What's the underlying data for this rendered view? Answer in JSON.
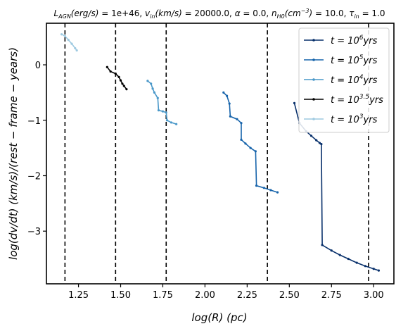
{
  "chart_data": {
    "type": "line",
    "title": "$L_{AGN}(erg/s) = 1e+46, v_{in}(km/s) = 20000.0, \\alpha = 0.0, n_{H0}(cm^{-3}) = 10.0, \\tau_{in} = 1.0$",
    "title_parts": {
      "L": "L",
      "L_sub": "AGN",
      "L_unit": "(erg/s)",
      "L_val": " = 1e+46, ",
      "v": "v",
      "v_sub": "in",
      "v_unit": "(km/s)",
      "v_val": " = 20000.0, ",
      "alpha": "α",
      "alpha_val": " = 0.0, ",
      "n": "n",
      "n_sub": "H0",
      "n_unit": "(cm",
      "n_sup": "−3",
      "n_close": ")",
      "n_val": " = 10.0, ",
      "tau": "τ",
      "tau_sub": "in",
      "tau_val": " = 1.0"
    },
    "xlabel": "log(R)   (pc)",
    "ylabel": "log(dv/dt)   (km/s)/(rest − frame − years)",
    "xlim": [
      1.06,
      3.12
    ],
    "ylim": [
      -3.95,
      0.75
    ],
    "xticks": [
      1.25,
      1.5,
      1.75,
      2.0,
      2.25,
      2.5,
      2.75,
      3.0
    ],
    "xtick_labels": [
      "1.25",
      "1.50",
      "1.75",
      "2.00",
      "2.25",
      "2.50",
      "2.75",
      "3.00"
    ],
    "yticks": [
      -3,
      -2,
      -1,
      0
    ],
    "ytick_labels": [
      "−3",
      "−2",
      "−1",
      "0"
    ],
    "vlines": [
      1.17,
      1.47,
      1.77,
      2.37,
      2.97
    ],
    "grid": false,
    "legend_position": "top-right",
    "series": [
      {
        "name": "t = 10^6 yrs",
        "legend_base": "t = 10",
        "legend_exp": "6",
        "legend_unit": "yrs",
        "color": "#08306b",
        "points": [
          [
            2.53,
            -0.69
          ],
          [
            2.56,
            -1.05
          ],
          [
            2.6,
            -1.2
          ],
          [
            2.63,
            -1.28
          ],
          [
            2.66,
            -1.36
          ],
          [
            2.68,
            -1.41
          ],
          [
            2.69,
            -1.43
          ],
          [
            2.695,
            -3.25
          ],
          [
            2.75,
            -3.35
          ],
          [
            2.8,
            -3.43
          ],
          [
            2.85,
            -3.5
          ],
          [
            2.9,
            -3.57
          ],
          [
            2.95,
            -3.63
          ],
          [
            3.0,
            -3.68
          ],
          [
            3.03,
            -3.71
          ]
        ]
      },
      {
        "name": "t = 10^5 yrs",
        "legend_base": "t = 10",
        "legend_exp": "5",
        "legend_unit": "yrs",
        "color": "#1764ab",
        "points": [
          [
            2.11,
            -0.5
          ],
          [
            2.13,
            -0.56
          ],
          [
            2.145,
            -0.7
          ],
          [
            2.15,
            -0.93
          ],
          [
            2.19,
            -0.98
          ],
          [
            2.215,
            -1.05
          ],
          [
            2.215,
            -1.35
          ],
          [
            2.24,
            -1.42
          ],
          [
            2.27,
            -1.5
          ],
          [
            2.3,
            -1.56
          ],
          [
            2.305,
            -2.18
          ],
          [
            2.35,
            -2.22
          ],
          [
            2.39,
            -2.26
          ],
          [
            2.43,
            -2.3
          ]
        ]
      },
      {
        "name": "t = 10^4 yrs",
        "legend_base": "t = 10",
        "legend_exp": "4",
        "legend_unit": "yrs",
        "color": "#4a98c9",
        "points": [
          [
            1.66,
            -0.29
          ],
          [
            1.68,
            -0.34
          ],
          [
            1.69,
            -0.43
          ],
          [
            1.7,
            -0.5
          ],
          [
            1.72,
            -0.6
          ],
          [
            1.725,
            -0.82
          ],
          [
            1.75,
            -0.84
          ],
          [
            1.77,
            -0.86
          ],
          [
            1.775,
            -1.0
          ],
          [
            1.8,
            -1.04
          ],
          [
            1.83,
            -1.07
          ]
        ]
      },
      {
        "name": "t = 10^3.5 yrs",
        "legend_base": "t = 10",
        "legend_exp": "3.5",
        "legend_unit": "yrs",
        "color": "#000000",
        "points": [
          [
            1.42,
            -0.04
          ],
          [
            1.44,
            -0.12
          ],
          [
            1.47,
            -0.16
          ],
          [
            1.49,
            -0.22
          ],
          [
            1.5,
            -0.28
          ],
          [
            1.51,
            -0.34
          ],
          [
            1.52,
            -0.38
          ],
          [
            1.535,
            -0.44
          ]
        ]
      },
      {
        "name": "t = 10^3 yrs",
        "legend_base": "t = 10",
        "legend_exp": "3",
        "legend_unit": "yrs",
        "color": "#9ecae1",
        "points": [
          [
            1.15,
            0.55
          ],
          [
            1.17,
            0.52
          ],
          [
            1.19,
            0.45
          ],
          [
            1.21,
            0.38
          ],
          [
            1.23,
            0.3
          ],
          [
            1.24,
            0.26
          ]
        ]
      }
    ]
  }
}
